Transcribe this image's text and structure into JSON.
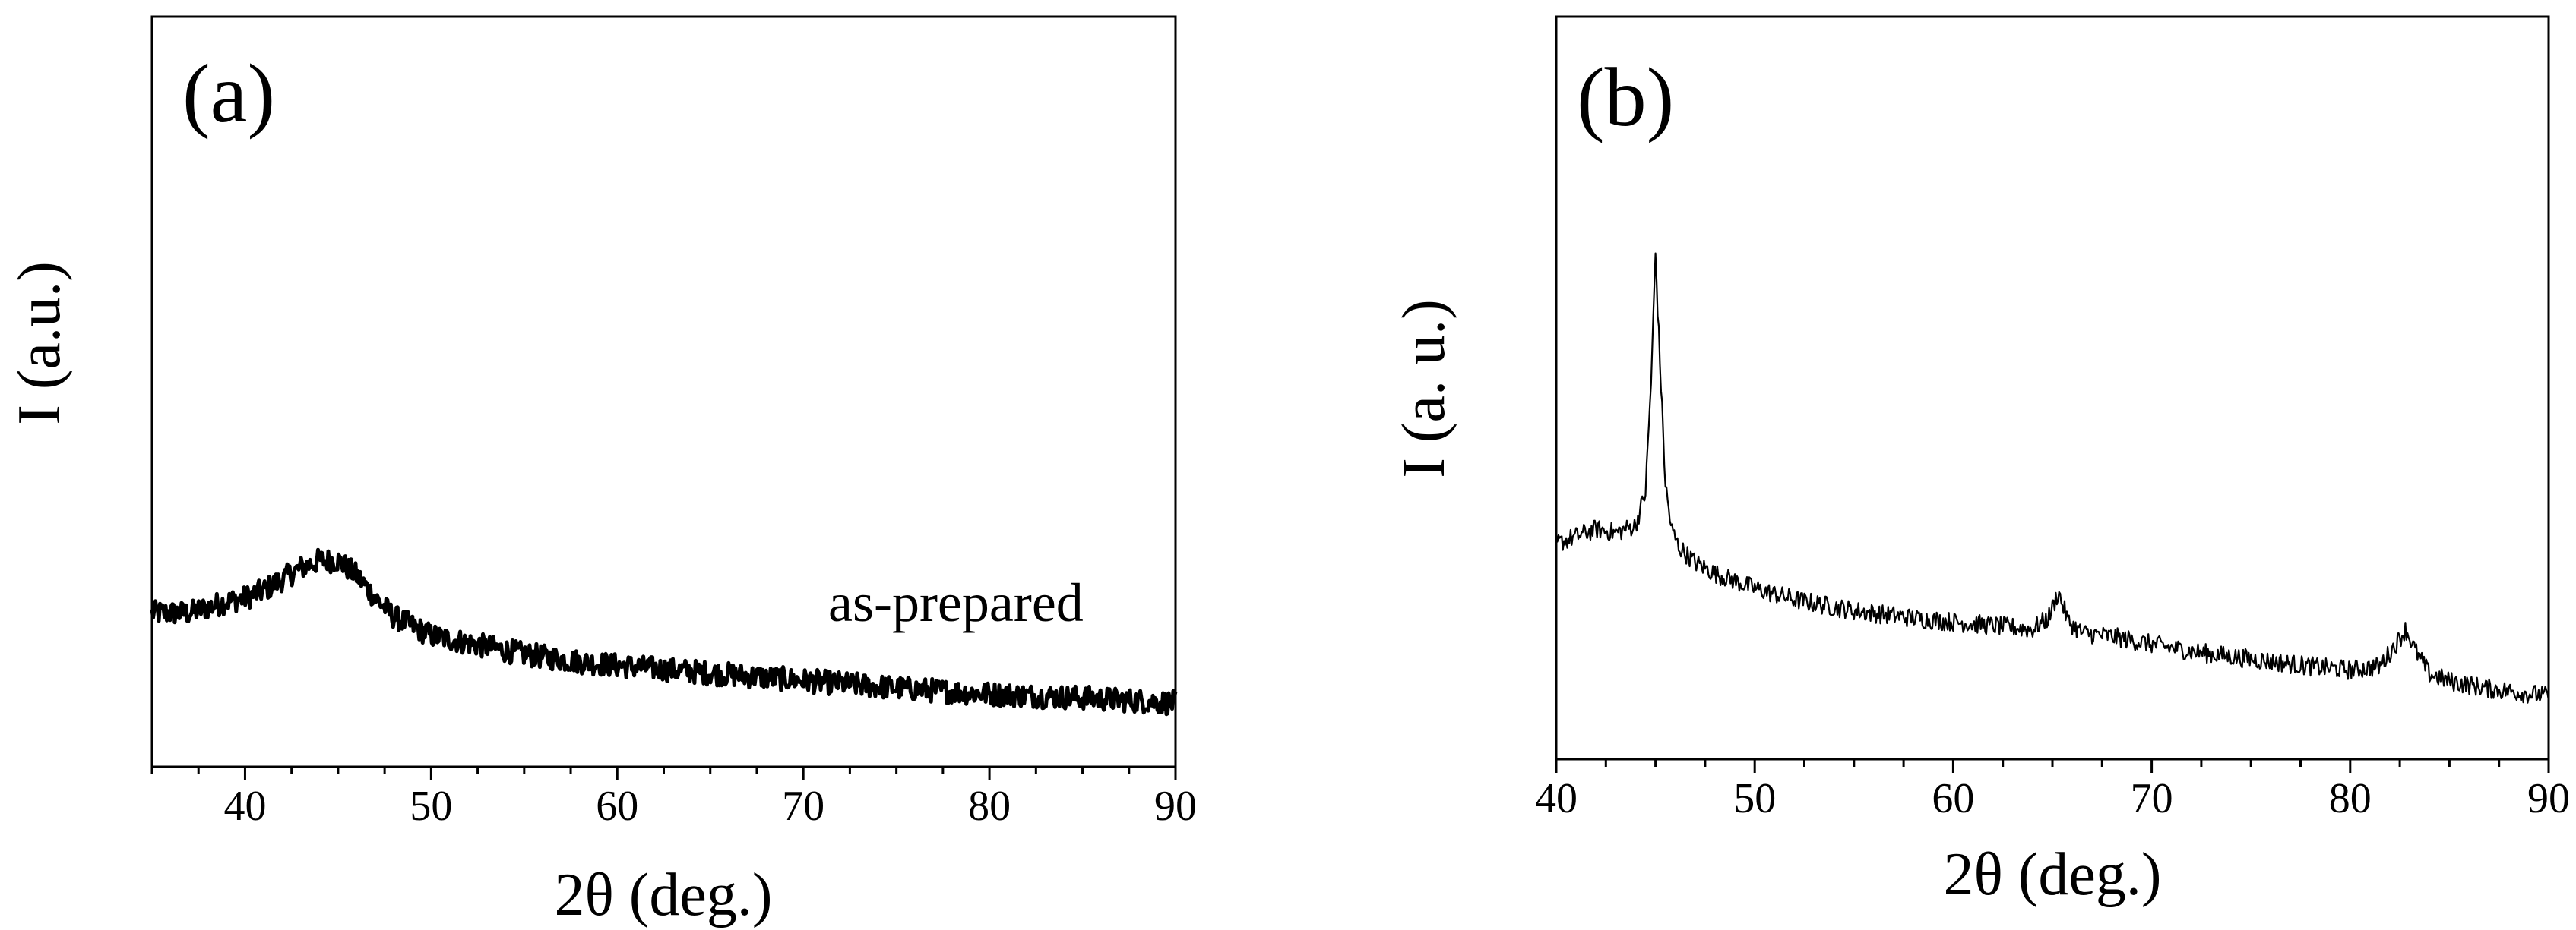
{
  "chart_data": [
    {
      "type": "line",
      "panel_label": "(a)",
      "xlabel": "2θ (deg.)",
      "ylabel": "I (a.u.)",
      "xlim": [
        35,
        90
      ],
      "ylim": [
        0,
        100
      ],
      "xticks": [
        40,
        50,
        60,
        70,
        80,
        90
      ],
      "x_minor_step": 2.5,
      "grid": false,
      "legend": "none",
      "annotation": "as-prepared",
      "line_width": "thick",
      "noise": 1.6,
      "series": [
        {
          "x": [
            35,
            37,
            39,
            40,
            41,
            42,
            43,
            44,
            45,
            46,
            47,
            48,
            50,
            52,
            55,
            58,
            60,
            65,
            70,
            75,
            80,
            85,
            90
          ],
          "y": [
            20.5,
            20.5,
            22.0,
            22.5,
            23.5,
            25.0,
            26.5,
            27.5,
            27.5,
            25.5,
            22.5,
            20.0,
            17.5,
            16.5,
            15.0,
            14.0,
            13.5,
            12.5,
            11.5,
            10.5,
            9.7,
            9.2,
            8.5
          ]
        }
      ]
    },
    {
      "type": "line",
      "panel_label": "(b)",
      "xlabel": "2θ (deg.)",
      "ylabel": "I (a. u.)",
      "xlim": [
        40,
        90
      ],
      "ylim": [
        0,
        100
      ],
      "xticks": [
        40,
        50,
        60,
        70,
        80,
        90
      ],
      "x_minor_step": 2.5,
      "grid": false,
      "legend": "none",
      "line_width": "thin",
      "noise": 1.3,
      "series": [
        {
          "x": [
            40,
            41,
            42,
            43,
            44,
            44.5,
            44.8,
            45.0,
            45.2,
            45.5,
            45.8,
            46.2,
            47,
            48,
            50,
            52,
            55,
            58,
            60,
            62,
            64,
            64.8,
            65.3,
            65.8,
            66.5,
            68,
            70,
            72,
            75,
            78,
            80,
            81.5,
            82.3,
            82.8,
            83.3,
            84,
            85,
            87,
            90
          ],
          "y": [
            29.0,
            30.0,
            31.0,
            30.5,
            31.5,
            36.0,
            52.0,
            68.0,
            55.0,
            37.0,
            31.0,
            28.5,
            26.5,
            25.0,
            23.0,
            21.5,
            20.0,
            19.0,
            18.5,
            18.0,
            17.5,
            19.0,
            22.5,
            18.5,
            17.0,
            16.5,
            15.5,
            14.5,
            13.5,
            12.5,
            12.0,
            12.5,
            15.5,
            17.5,
            14.5,
            11.5,
            10.5,
            9.5,
            8.5
          ]
        }
      ]
    }
  ]
}
